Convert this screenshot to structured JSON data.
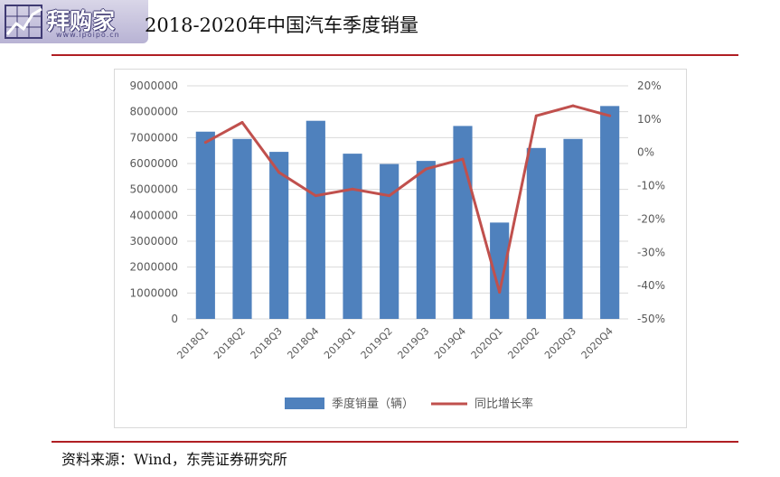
{
  "logo": {
    "text": "拜购家",
    "url": "www.ipoipo.cn"
  },
  "header": {
    "title": "2018-2020年中国汽车季度销量"
  },
  "footer": {
    "source": "资料来源：Wind，东莞证券研究所"
  },
  "colors": {
    "bar": "#4f81bd",
    "line": "#c0504d",
    "rule": "#b01e23",
    "grid": "#d9d9d9",
    "axis_text": "#595959"
  },
  "chart_data": {
    "type": "bar",
    "title": "2018-2020年中国汽车季度销量",
    "categories": [
      "2018Q1",
      "2018Q2",
      "2018Q3",
      "2018Q4",
      "2019Q1",
      "2019Q2",
      "2019Q3",
      "2019Q4",
      "2020Q1",
      "2020Q2",
      "2020Q3",
      "2020Q4"
    ],
    "series": [
      {
        "name": "季度销量（辆）",
        "type": "bar",
        "axis": "left",
        "values": [
          7230000,
          6950000,
          6450000,
          7650000,
          6380000,
          5980000,
          6100000,
          7450000,
          3720000,
          6600000,
          6950000,
          8220000
        ]
      },
      {
        "name": "同比增长率",
        "type": "line",
        "axis": "right",
        "values": [
          3,
          9,
          -6,
          -13,
          -11,
          -13,
          -5,
          -2,
          -42,
          11,
          14,
          11
        ]
      }
    ],
    "left_axis": {
      "min": 0,
      "max": 9000000,
      "step": 1000000,
      "tick_labels": [
        "0",
        "1000000",
        "2000000",
        "3000000",
        "4000000",
        "5000000",
        "6000000",
        "7000000",
        "8000000",
        "9000000"
      ]
    },
    "right_axis": {
      "min": -50,
      "max": 20,
      "step": 10,
      "tick_labels": [
        "-50%",
        "-40%",
        "-30%",
        "-20%",
        "-10%",
        "0%",
        "10%",
        "20%"
      ]
    },
    "grid": true,
    "legend": "bottom"
  }
}
